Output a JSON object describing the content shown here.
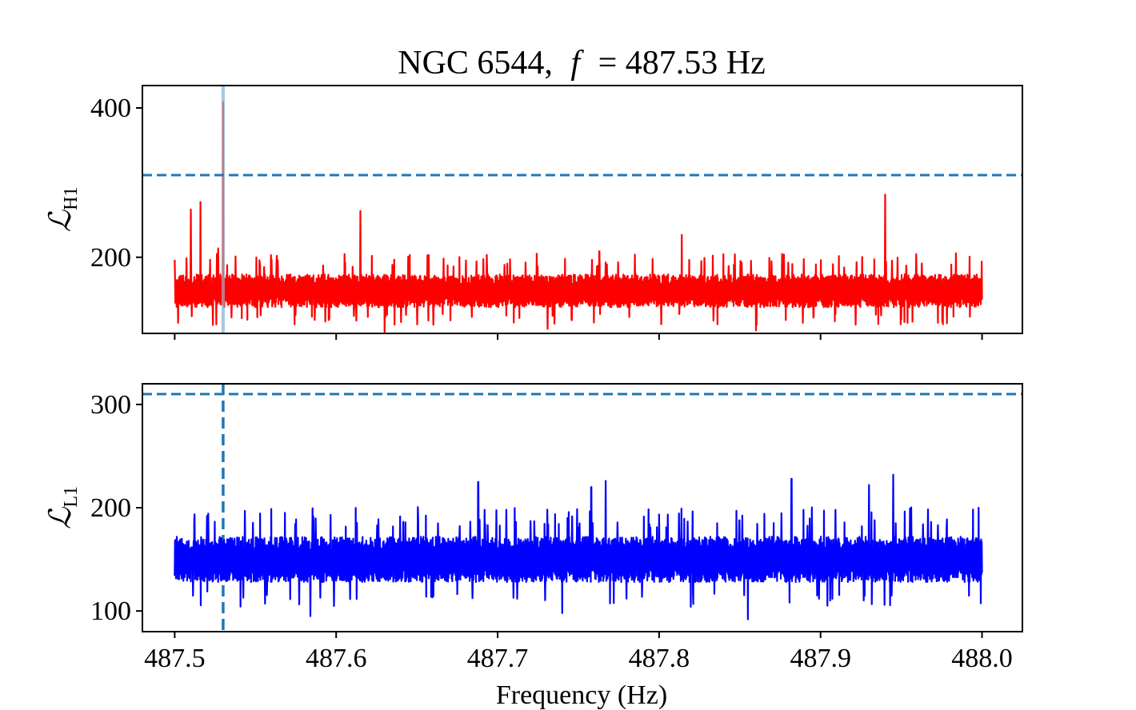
{
  "chart_data": {
    "title": "NGC 6544, f = 487.53 Hz",
    "title_parts": {
      "prefix": "NGC 6544,",
      "var": "f",
      "rest": "= 487.53 Hz"
    },
    "type": "line",
    "shared_x": {
      "label": "Frequency (Hz)",
      "range": [
        487.48,
        488.025
      ],
      "ticks": [
        487.5,
        487.6,
        487.7,
        487.8,
        487.9,
        488.0
      ],
      "tick_labels": [
        "487.5",
        "487.6",
        "487.7",
        "487.8",
        "487.9",
        "488.0"
      ]
    },
    "panels": [
      {
        "id": "H1",
        "ylabel_main": "ℒ",
        "ylabel_sub": "H1",
        "ylim": [
          98,
          430
        ],
        "yticks": [
          200,
          400
        ],
        "ytick_labels": [
          "200",
          "400"
        ],
        "series_color": "#ff0000",
        "threshold_y": 310,
        "threshold_color": "#1f77b4",
        "marker_x": 487.53,
        "marker_color": "#a6c8e0",
        "baseline_mean": 155,
        "baseline_spread": 22,
        "spikes": [
          {
            "x": 487.51,
            "y": 264
          },
          {
            "x": 487.516,
            "y": 274
          },
          {
            "x": 487.527,
            "y": 212
          },
          {
            "x": 487.53,
            "y": 408
          },
          {
            "x": 487.615,
            "y": 262
          },
          {
            "x": 487.763,
            "y": 208
          },
          {
            "x": 487.814,
            "y": 230
          },
          {
            "x": 487.94,
            "y": 284
          }
        ],
        "dips": [
          {
            "x": 487.63,
            "y": 100
          },
          {
            "x": 487.731,
            "y": 104
          },
          {
            "x": 487.86,
            "y": 102
          }
        ]
      },
      {
        "id": "L1",
        "ylabel_main": "ℒ",
        "ylabel_sub": "L1",
        "ylim": [
          80,
          320
        ],
        "yticks": [
          100,
          200,
          300
        ],
        "ytick_labels": [
          "100",
          "200",
          "300"
        ],
        "series_color": "#0000ff",
        "threshold_y": 310,
        "threshold_color": "#1f77b4",
        "marker_x": 487.53,
        "marker_color": "#1f77b4",
        "baseline_mean": 150,
        "baseline_spread": 22,
        "spikes": [
          {
            "x": 487.688,
            "y": 225
          },
          {
            "x": 487.758,
            "y": 220
          },
          {
            "x": 487.767,
            "y": 226
          },
          {
            "x": 487.882,
            "y": 228
          },
          {
            "x": 487.945,
            "y": 232
          },
          {
            "x": 487.93,
            "y": 222
          }
        ],
        "dips": [
          {
            "x": 487.584,
            "y": 95
          },
          {
            "x": 487.855,
            "y": 92
          },
          {
            "x": 487.74,
            "y": 98
          }
        ]
      }
    ]
  }
}
